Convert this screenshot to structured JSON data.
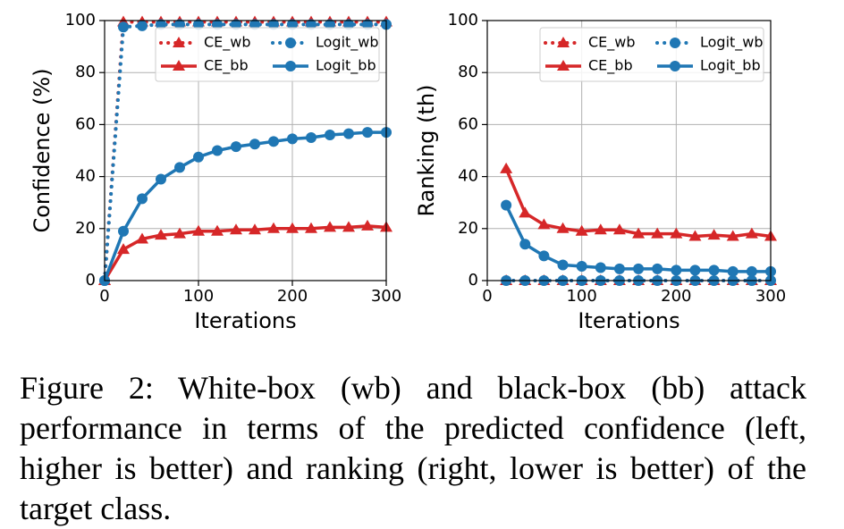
{
  "chart_data": [
    {
      "type": "line",
      "x_label": "Iterations",
      "y_label": "Confidence (%)",
      "x": [
        0,
        20,
        40,
        60,
        80,
        100,
        120,
        140,
        160,
        180,
        200,
        220,
        240,
        260,
        280,
        300
      ],
      "xlim": [
        0,
        300
      ],
      "xticks": [
        0,
        100,
        200,
        300
      ],
      "ylim": [
        0,
        100
      ],
      "yticks": [
        0,
        20,
        40,
        60,
        80,
        100
      ],
      "grid": true,
      "legend": "upper right",
      "legend_columns": 2,
      "series": [
        {
          "name": "CE_wb",
          "color": "#d62728",
          "style": "dotted",
          "marker": "triangle",
          "values": [
            0,
            99.5,
            99.5,
            99.5,
            99.5,
            99.5,
            99.5,
            99.5,
            99.5,
            99.5,
            99.5,
            99.5,
            99.5,
            99.5,
            99.5,
            99.5
          ]
        },
        {
          "name": "Logit_wb",
          "color": "#1f77b4",
          "style": "dotted",
          "marker": "circle",
          "values": [
            0,
            97.5,
            98,
            98.5,
            98.5,
            98.5,
            98.5,
            98.5,
            98.5,
            98.5,
            98.5,
            98.5,
            98.5,
            98.5,
            98.5,
            98.5
          ]
        },
        {
          "name": "CE_bb",
          "color": "#d62728",
          "style": "solid",
          "marker": "triangle",
          "values": [
            0,
            12,
            16,
            17.5,
            18,
            19,
            19,
            19.5,
            19.5,
            20,
            20,
            20,
            20.5,
            20.5,
            21,
            20.5
          ]
        },
        {
          "name": "Logit_bb",
          "color": "#1f77b4",
          "style": "solid",
          "marker": "circle",
          "values": [
            0,
            19,
            31.5,
            39,
            43.5,
            47.5,
            50,
            51.5,
            52.5,
            53.5,
            54.5,
            55,
            56,
            56.5,
            57,
            57
          ]
        }
      ]
    },
    {
      "type": "line",
      "x_label": "Iterations",
      "y_label": "Ranking (th)",
      "x": [
        20,
        40,
        60,
        80,
        100,
        120,
        140,
        160,
        180,
        200,
        220,
        240,
        260,
        280,
        300
      ],
      "xlim": [
        0,
        300
      ],
      "xticks": [
        0,
        100,
        200,
        300
      ],
      "ylim": [
        0,
        100
      ],
      "yticks": [
        0,
        20,
        40,
        60,
        80,
        100
      ],
      "grid": true,
      "legend": "upper right",
      "legend_columns": 2,
      "series": [
        {
          "name": "CE_wb",
          "color": "#d62728",
          "style": "dotted",
          "marker": "triangle",
          "values": [
            0,
            0,
            0,
            0,
            0,
            0,
            0,
            0,
            0,
            0,
            0,
            0,
            0,
            0,
            0
          ]
        },
        {
          "name": "Logit_wb",
          "color": "#1f77b4",
          "style": "dotted",
          "marker": "circle",
          "values": [
            0,
            0,
            0,
            0,
            0,
            0,
            0,
            0,
            0,
            0,
            0,
            0,
            0,
            0,
            0
          ]
        },
        {
          "name": "CE_bb",
          "color": "#d62728",
          "style": "solid",
          "marker": "triangle",
          "values": [
            43,
            26,
            21.5,
            20,
            19,
            19.5,
            19.5,
            18,
            18,
            18,
            17,
            17.5,
            17,
            18,
            17
          ]
        },
        {
          "name": "Logit_bb",
          "color": "#1f77b4",
          "style": "solid",
          "marker": "circle",
          "values": [
            29,
            14,
            9.5,
            6,
            5.5,
            5,
            4.5,
            4.5,
            4.5,
            4,
            4,
            4,
            3.5,
            3.5,
            3.5
          ]
        }
      ]
    }
  ],
  "caption": "Figure 2: White-box (wb) and black-box (bb) attack performance in terms of the predicted confidence (left, higher is better) and ranking (right, lower is better) of the target class."
}
